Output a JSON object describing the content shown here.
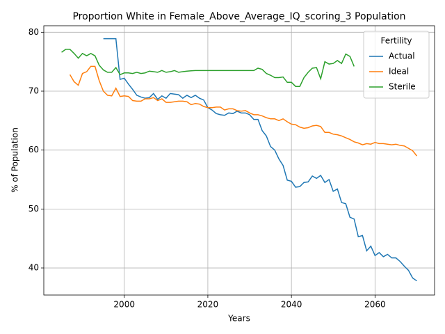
{
  "chart_data": {
    "type": "line",
    "title": "Proportion White in Female_Above_Average_IQ_scoring_3 Population",
    "x_label": "Years",
    "y_label": "% of Population",
    "legend_title": "Fertility",
    "legend": "upper right",
    "grid": true,
    "x": [
      1985,
      1986,
      1987,
      1988,
      1989,
      1990,
      1991,
      1992,
      1993,
      1994,
      1995,
      1996,
      1997,
      1998,
      1999,
      2000,
      2001,
      2002,
      2003,
      2004,
      2005,
      2006,
      2007,
      2008,
      2009,
      2010,
      2011,
      2012,
      2013,
      2014,
      2015,
      2016,
      2017,
      2018,
      2019,
      2020,
      2021,
      2022,
      2023,
      2024,
      2025,
      2026,
      2027,
      2028,
      2029,
      2030,
      2031,
      2032,
      2033,
      2034,
      2035,
      2036,
      2037,
      2038,
      2039,
      2040,
      2041,
      2042,
      2043,
      2044,
      2045,
      2046,
      2047,
      2048,
      2049,
      2050,
      2051,
      2052,
      2053,
      2054,
      2055,
      2056,
      2057,
      2058,
      2059,
      2060,
      2061,
      2062,
      2063,
      2064,
      2065,
      2066,
      2067,
      2068,
      2069,
      2070
    ],
    "series": [
      {
        "name": "Actual",
        "color": "#1f77b4",
        "values": [
          null,
          null,
          null,
          null,
          null,
          null,
          null,
          null,
          null,
          null,
          78.9,
          78.9,
          78.9,
          78.9,
          72.0,
          72.2,
          71.2,
          70.3,
          69.3,
          69.0,
          68.8,
          68.9,
          69.6,
          68.6,
          69.2,
          68.8,
          69.6,
          69.5,
          69.4,
          68.8,
          69.3,
          68.9,
          69.3,
          68.8,
          68.5,
          67.2,
          66.8,
          66.2,
          66.0,
          65.9,
          66.3,
          66.2,
          66.6,
          66.3,
          66.3,
          66.0,
          65.2,
          65.2,
          63.3,
          62.4,
          60.6,
          60.0,
          58.5,
          57.4,
          54.9,
          54.7,
          53.7,
          53.8,
          54.5,
          54.6,
          55.6,
          55.2,
          55.7,
          54.5,
          55.0,
          53.0,
          53.4,
          51.1,
          50.9,
          48.6,
          48.3,
          45.3,
          45.5,
          42.9,
          43.7,
          42.1,
          42.6,
          41.9,
          42.3,
          41.7,
          41.7,
          41.1,
          40.3,
          39.6,
          38.3,
          37.8
        ]
      },
      {
        "name": "Ideal",
        "color": "#ff7f0e",
        "values": [
          null,
          null,
          72.8,
          71.6,
          71.0,
          73.0,
          73.3,
          74.2,
          74.2,
          71.8,
          70.0,
          69.3,
          69.2,
          70.5,
          69.1,
          69.2,
          69.1,
          68.4,
          68.3,
          68.3,
          68.7,
          68.7,
          68.9,
          68.4,
          68.7,
          68.1,
          68.1,
          68.2,
          68.3,
          68.3,
          68.2,
          67.7,
          67.9,
          67.8,
          67.4,
          67.2,
          67.2,
          67.3,
          67.3,
          66.8,
          67.0,
          67.0,
          66.7,
          66.6,
          66.7,
          66.3,
          66.0,
          66.0,
          65.8,
          65.5,
          65.3,
          65.3,
          65.0,
          65.3,
          64.8,
          64.4,
          64.3,
          63.9,
          63.7,
          63.8,
          64.1,
          64.2,
          64.0,
          63.0,
          63.0,
          62.7,
          62.6,
          62.4,
          62.1,
          61.8,
          61.4,
          61.2,
          60.9,
          61.1,
          61.0,
          61.3,
          61.1,
          61.1,
          61.0,
          60.9,
          61.0,
          60.8,
          60.7,
          60.3,
          59.9,
          59.0
        ]
      },
      {
        "name": "Sterile",
        "color": "#2ca02c",
        "values": [
          76.6,
          77.1,
          77.1,
          76.4,
          75.6,
          76.4,
          76.0,
          76.4,
          76.0,
          74.4,
          73.6,
          73.2,
          73.2,
          74.0,
          72.8,
          73.1,
          73.1,
          73.0,
          73.2,
          73.0,
          73.1,
          73.4,
          73.3,
          73.2,
          73.5,
          73.2,
          73.3,
          73.5,
          73.2,
          73.3,
          73.4,
          73.45,
          73.5,
          73.5,
          73.5,
          73.5,
          73.5,
          73.5,
          73.5,
          73.5,
          73.5,
          73.5,
          73.5,
          73.5,
          73.5,
          73.5,
          73.5,
          73.9,
          73.7,
          73.0,
          72.7,
          72.3,
          72.3,
          72.4,
          71.5,
          71.5,
          70.8,
          70.8,
          72.3,
          73.2,
          73.9,
          74.0,
          72.1,
          75.0,
          74.6,
          74.7,
          75.2,
          74.7,
          76.3,
          75.9,
          74.2,
          null,
          null,
          null,
          null,
          null,
          null,
          null,
          null,
          null,
          null,
          null,
          null,
          null,
          null,
          null
        ]
      }
    ],
    "xlim": [
      1980.75,
      2074.25
    ],
    "xticks": [
      2000,
      2020,
      2040,
      2060
    ],
    "ylim": [
      35.4,
      81.1
    ],
    "yticks": [
      40,
      50,
      60,
      70,
      80
    ]
  }
}
